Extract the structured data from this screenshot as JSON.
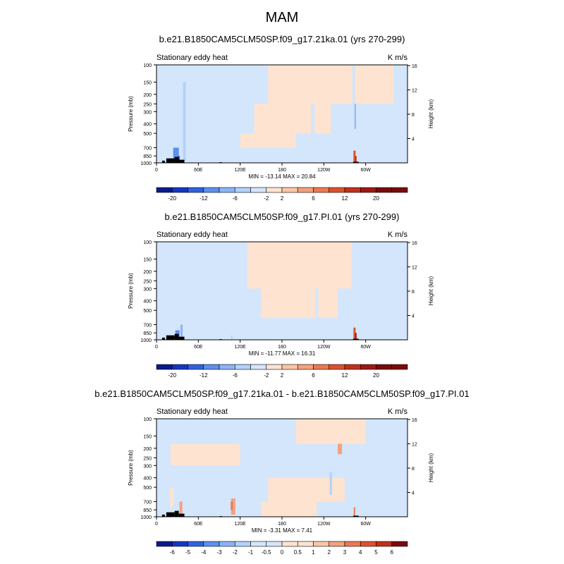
{
  "page": {
    "title": "MAM"
  },
  "panels": [
    {
      "title": "b.e21.B1850CAM5CLM50SP.f09_g17.21ka.01 (yrs 270-299)",
      "left_label": "Stationary eddy heat",
      "units": "K m/s",
      "min_max": "MIN = -13.14  MAX =  20.84",
      "colorbar_labels": [
        "-20",
        "-12",
        "-6",
        "-2",
        "2",
        "6",
        "12",
        "20"
      ]
    },
    {
      "title": "b.e21.B1850CAM5CLM50SP.f09_g17.PI.01 (yrs 270-299)",
      "left_label": "Stationary eddy heat",
      "units": "K m/s",
      "min_max": "MIN = -11.77  MAX =  16.31",
      "colorbar_labels": [
        "-20",
        "-12",
        "-6",
        "-2",
        "2",
        "6",
        "12",
        "20"
      ]
    },
    {
      "title": "b.e21.B1850CAM5CLM50SP.f09_g17.21ka.01 - b.e21.B1850CAM5CLM50SP.f09_g17.PI.01",
      "left_label": "Stationary eddy heat",
      "units": "K m/s",
      "min_max": "MIN =  -3.31  MAX =   7.41",
      "colorbar_labels": [
        "-6",
        "-5",
        "-4",
        "-3",
        "-2",
        "-1",
        "-0.5",
        "0",
        "0.5",
        "1",
        "2",
        "3",
        "4",
        "5",
        "6"
      ]
    }
  ],
  "colors": {
    "blue_scale": [
      "#0b1a8e",
      "#1437c4",
      "#2e62e0",
      "#5d8ff0",
      "#8bb4f7",
      "#b2d2fb",
      "#d3e6fc"
    ],
    "red_scale": [
      "#fde3d0",
      "#fbc6a6",
      "#f6a07c",
      "#ee7850",
      "#e0502d",
      "#c4301a",
      "#a01810",
      "#7a0a0a"
    ],
    "background_negative": "#d3e6fc",
    "background_positive": "#fde3d0",
    "topography": "#000000"
  },
  "chart_data": [
    {
      "type": "heatmap",
      "title": "b.e21.B1850CAM5CLM50SP.f09_g17.21ka.01 (yrs 270-299)",
      "variable": "Stationary eddy heat",
      "units": "K m/s",
      "xlabel": "",
      "ylabel": "Pressure (mb)",
      "ylabel_right": "Height (km)",
      "x_ticks": [
        "0",
        "60E",
        "120E",
        "180",
        "120W",
        "60W"
      ],
      "x_range": [
        0,
        360
      ],
      "y_ticks": [
        100,
        150,
        200,
        250,
        300,
        400,
        500,
        700,
        850,
        1000
      ],
      "y_range": [
        100,
        1000
      ],
      "y_scale": "log",
      "y_right_ticks": [
        4,
        8,
        12,
        16
      ],
      "min": -13.14,
      "max": 20.84,
      "colorbar_levels": [
        -20,
        -12,
        -6,
        -2,
        2,
        6,
        12,
        20
      ]
    },
    {
      "type": "heatmap",
      "title": "b.e21.B1850CAM5CLM50SP.f09_g17.PI.01 (yrs 270-299)",
      "variable": "Stationary eddy heat",
      "units": "K m/s",
      "xlabel": "",
      "ylabel": "Pressure (mb)",
      "ylabel_right": "Height (km)",
      "x_ticks": [
        "0",
        "60E",
        "120E",
        "180",
        "120W",
        "60W"
      ],
      "x_range": [
        0,
        360
      ],
      "y_ticks": [
        100,
        150,
        200,
        250,
        300,
        400,
        500,
        700,
        850,
        1000
      ],
      "y_range": [
        100,
        1000
      ],
      "y_scale": "log",
      "y_right_ticks": [
        4,
        8,
        12,
        16
      ],
      "min": -11.77,
      "max": 16.31,
      "colorbar_levels": [
        -20,
        -12,
        -6,
        -2,
        2,
        6,
        12,
        20
      ]
    },
    {
      "type": "heatmap",
      "title": "b.e21.B1850CAM5CLM50SP.f09_g17.21ka.01 - b.e21.B1850CAM5CLM50SP.f09_g17.PI.01",
      "variable": "Stationary eddy heat",
      "units": "K m/s",
      "xlabel": "",
      "ylabel": "Pressure (mb)",
      "ylabel_right": "Height (km)",
      "x_ticks": [
        "0",
        "60E",
        "120E",
        "180",
        "120W",
        "60W"
      ],
      "x_range": [
        0,
        360
      ],
      "y_ticks": [
        100,
        150,
        200,
        250,
        300,
        400,
        500,
        700,
        850,
        1000
      ],
      "y_range": [
        100,
        1000
      ],
      "y_scale": "log",
      "y_right_ticks": [
        4,
        8,
        12,
        16
      ],
      "min": -3.31,
      "max": 7.41,
      "colorbar_levels": [
        -6,
        -5,
        -4,
        -3,
        -2,
        -1,
        -0.5,
        0,
        0.5,
        1,
        2,
        3,
        4,
        5,
        6
      ]
    }
  ]
}
